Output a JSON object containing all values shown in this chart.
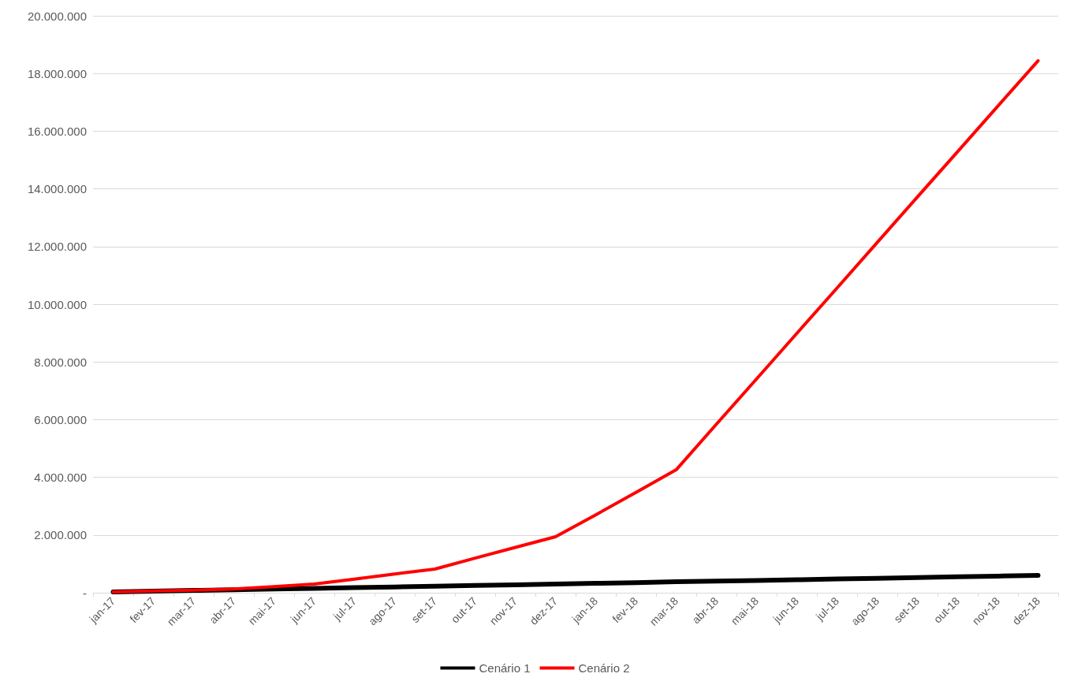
{
  "chart_data": {
    "type": "line",
    "categories": [
      "jan-17",
      "fev-17",
      "mar-17",
      "abr-17",
      "mai-17",
      "jun-17",
      "jul-17",
      "ago-17",
      "set-17",
      "out-17",
      "nov-17",
      "dez-17",
      "jan-18",
      "fev-18",
      "mar-18",
      "abr-18",
      "mai-18",
      "jun-18",
      "jul-18",
      "ago-18",
      "set-18",
      "out-18",
      "nov-18",
      "dez-18"
    ],
    "series": [
      {
        "name": "Cenário 1",
        "color": "#000000",
        "values": [
          30000,
          55000,
          80000,
          105000,
          130000,
          150000,
          175000,
          200000,
          225000,
          250000,
          275000,
          300000,
          325000,
          350000,
          380000,
          400000,
          425000,
          450000,
          475000,
          500000,
          525000,
          550000,
          575000,
          600000
        ]
      },
      {
        "name": "Cenário 2",
        "color": "#ff0000",
        "values": [
          30000,
          60000,
          90000,
          130000,
          210000,
          300000,
          470000,
          650000,
          820000,
          1200000,
          1570000,
          1940000,
          2700000,
          3480000,
          4260000,
          5840000,
          7410000,
          8990000,
          10560000,
          12140000,
          13720000,
          15290000,
          16870000,
          18440000
        ]
      }
    ],
    "ylim": [
      0,
      20000000
    ],
    "yticks": [
      {
        "value": 0,
        "label": "-"
      },
      {
        "value": 2000000,
        "label": "2.000.000"
      },
      {
        "value": 4000000,
        "label": "4.000.000"
      },
      {
        "value": 6000000,
        "label": "6.000.000"
      },
      {
        "value": 8000000,
        "label": "8.000.000"
      },
      {
        "value": 10000000,
        "label": "10.000.000"
      },
      {
        "value": 12000000,
        "label": "12.000.000"
      },
      {
        "value": 14000000,
        "label": "14.000.000"
      },
      {
        "value": 16000000,
        "label": "16.000.000"
      },
      {
        "value": 18000000,
        "label": "18.000.000"
      },
      {
        "value": 20000000,
        "label": "20.000.000"
      }
    ],
    "grid": "y",
    "legend": "bottom",
    "marker": "none",
    "line_style": "solid"
  }
}
